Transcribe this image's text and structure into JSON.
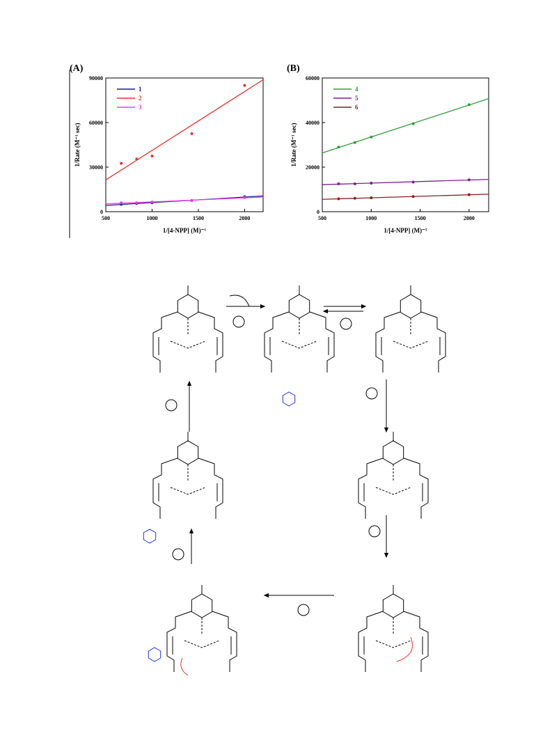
{
  "chart_data": [
    {
      "type": "scatter",
      "panel_label": "(A)",
      "trendline": "linear",
      "xlabel": "1/[4-NPP] (M)⁻¹",
      "ylabel": "1/Rate (M⁻¹ sec)",
      "xlim": [
        500,
        2200
      ],
      "ylim": [
        0,
        90000
      ],
      "xticks": [
        500,
        1000,
        1500,
        2000
      ],
      "yticks": [
        0,
        30000,
        60000,
        90000
      ],
      "legend": "upper left",
      "x": [
        667,
        833,
        1000,
        1429,
        2000
      ],
      "series": [
        {
          "name": "1",
          "color": "#1a1a8c",
          "values": [
            5000,
            5500,
            6000,
            7500,
            10000
          ]
        },
        {
          "name": "2",
          "color": "#e8312f",
          "values": [
            32500,
            35500,
            37500,
            52500,
            85000
          ]
        },
        {
          "name": "3",
          "color": "#e83be8",
          "values": [
            6000,
            6000,
            6500,
            7500,
            9500
          ]
        }
      ]
    },
    {
      "type": "scatter",
      "panel_label": "(B)",
      "trendline": "linear",
      "xlabel": "1/[4-NPP] (M)⁻¹",
      "ylabel": "1/Rate (M⁻¹ sec)",
      "xlim": [
        500,
        2200
      ],
      "ylim": [
        0,
        60000
      ],
      "xticks": [
        500,
        1000,
        1500,
        2000
      ],
      "yticks": [
        0,
        20000,
        40000,
        60000
      ],
      "legend": "upper left",
      "x": [
        667,
        833,
        1000,
        1429,
        2000
      ],
      "series": [
        {
          "name": "4",
          "color": "#2e9e3a",
          "values": [
            29000,
            31000,
            33500,
            39500,
            48000
          ]
        },
        {
          "name": "5",
          "color": "#7b1f8c",
          "values": [
            12500,
            12500,
            12800,
            13300,
            14300
          ]
        },
        {
          "name": "6",
          "color": "#8c1f1f",
          "values": [
            5800,
            6000,
            6200,
            6800,
            7600
          ]
        }
      ]
    }
  ]
}
